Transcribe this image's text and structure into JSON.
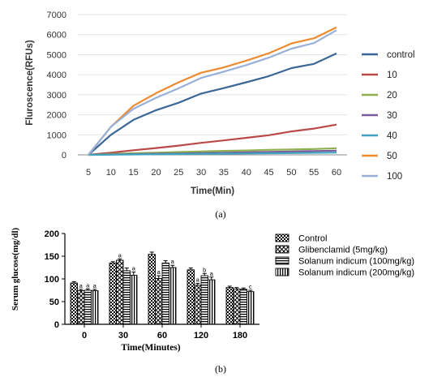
{
  "chart_data": [
    {
      "type": "line",
      "panel_label": "(a)",
      "title": "",
      "xlabel": "Time(Min)",
      "ylabel": "Fluroscence(RFUs)",
      "x": [
        5,
        10,
        15,
        20,
        25,
        30,
        35,
        40,
        45,
        50,
        55,
        60
      ],
      "xticks": [
        "5",
        "10",
        "15",
        "20",
        "25",
        "30",
        "35",
        "40",
        "45",
        "50",
        "55",
        "60"
      ],
      "ylim": [
        0,
        7000
      ],
      "yticks": [
        "0",
        "1000",
        "2000",
        "3000",
        "4000",
        "5000",
        "6000",
        "7000"
      ],
      "yticks_values": [
        0,
        1000,
        2000,
        3000,
        4000,
        5000,
        6000,
        7000
      ],
      "legend_position": "right",
      "series": [
        {
          "name": "control",
          "color": "#3b6796",
          "values": [
            0,
            1000,
            1750,
            2230,
            2600,
            3060,
            3330,
            3620,
            3930,
            4330,
            4540,
            5060
          ]
        },
        {
          "name": "10",
          "color": "#b94a48",
          "values": [
            0,
            110,
            230,
            340,
            460,
            600,
            720,
            850,
            980,
            1170,
            1310,
            1510
          ]
        },
        {
          "name": "20",
          "color": "#8fb04e",
          "values": [
            0,
            50,
            80,
            110,
            140,
            170,
            200,
            220,
            250,
            270,
            290,
            330
          ]
        },
        {
          "name": "30",
          "color": "#7a5a9a",
          "values": [
            0,
            20,
            35,
            55,
            70,
            90,
            110,
            130,
            150,
            170,
            190,
            210
          ]
        },
        {
          "name": "40",
          "color": "#3fa3bf",
          "values": [
            0,
            10,
            20,
            30,
            40,
            50,
            60,
            70,
            80,
            90,
            100,
            115
          ]
        },
        {
          "name": "50",
          "color": "#ee8a2f",
          "values": [
            0,
            1400,
            2450,
            3080,
            3620,
            4100,
            4360,
            4700,
            5070,
            5560,
            5820,
            6360
          ]
        },
        {
          "name": "100",
          "color": "#98b0d8",
          "values": [
            0,
            1400,
            2300,
            2850,
            3320,
            3840,
            4150,
            4480,
            4850,
            5300,
            5580,
            6220
          ]
        }
      ]
    },
    {
      "type": "bar",
      "panel_label": "(b)",
      "title": "",
      "xlabel": "Time(Minutes)",
      "ylabel": "Serum glucose(mg/dl)",
      "categories": [
        "0",
        "30",
        "60",
        "120",
        "180"
      ],
      "ylim": [
        0,
        200
      ],
      "yticks": [
        "0",
        "50",
        "100",
        "150",
        "200"
      ],
      "yticks_values": [
        0,
        50,
        100,
        150,
        200
      ],
      "legend_position": "right",
      "series": [
        {
          "name": "Control",
          "pattern": "checker",
          "values": [
            91,
            135,
            154,
            120,
            81
          ],
          "errors": [
            3,
            3,
            5,
            4,
            3
          ],
          "annotations": [
            "",
            "",
            "",
            "",
            ""
          ]
        },
        {
          "name": "Glibenclamid (5mg/kg)",
          "pattern": "cross",
          "values": [
            74,
            141,
            101,
            86,
            78
          ],
          "errors": [
            3,
            3,
            6,
            4,
            3
          ],
          "annotations": [
            "a",
            "a",
            "a",
            "a",
            ""
          ]
        },
        {
          "name": "Solanum indicum (100mg/kg)",
          "pattern": "hlines",
          "values": [
            75,
            118,
            135,
            107,
            77
          ],
          "errors": [
            3,
            6,
            5,
            5,
            3
          ],
          "annotations": [
            "a",
            "",
            "",
            "b",
            ""
          ]
        },
        {
          "name": "Solanum indicum (200mg/kg)",
          "pattern": "vlines",
          "values": [
            74,
            108,
            125,
            98,
            72
          ],
          "errors": [
            3,
            7,
            5,
            6,
            3
          ],
          "annotations": [
            "a",
            "a",
            "a",
            "a",
            "c"
          ]
        }
      ]
    }
  ]
}
